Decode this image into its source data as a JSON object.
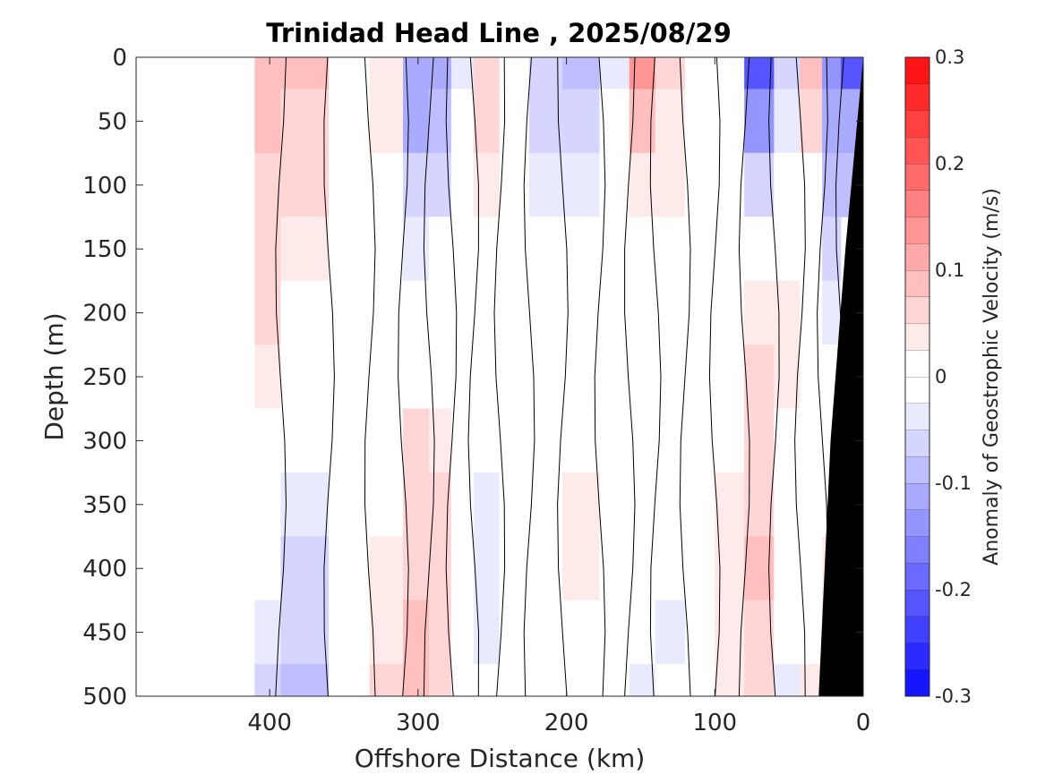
{
  "chart_data": {
    "type": "heatmap",
    "subtype": "filled-contour",
    "title": "Trinidad Head Line , 2025/08/29",
    "xlabel": "Offshore Distance (km)",
    "ylabel": "Depth (m)",
    "xlim": [
      490,
      0
    ],
    "ylim": [
      0,
      500
    ],
    "x_reversed": true,
    "y_reversed": true,
    "x_ticks": [
      400,
      300,
      200,
      100,
      0
    ],
    "x_tick_labels": [
      "400",
      "300",
      "200",
      "100",
      "0"
    ],
    "y_ticks": [
      0,
      50,
      100,
      150,
      200,
      250,
      300,
      350,
      400,
      450,
      500
    ],
    "y_tick_labels": [
      "0",
      "50",
      "100",
      "150",
      "200",
      "250",
      "300",
      "350",
      "400",
      "450",
      "500"
    ],
    "colorbar": {
      "label": "Anomaly of Geostrophic Velocity (m/s)",
      "range": [
        -0.3,
        0.3
      ],
      "levels": [
        -0.3,
        -0.275,
        -0.25,
        -0.225,
        -0.2,
        -0.175,
        -0.15,
        -0.125,
        -0.1,
        -0.075,
        -0.05,
        -0.025,
        0,
        0.025,
        0.05,
        0.075,
        0.1,
        0.125,
        0.15,
        0.175,
        0.2,
        0.225,
        0.25,
        0.275,
        0.3
      ],
      "ticks": [
        0.3,
        0.2,
        0.1,
        0,
        -0.1,
        -0.2,
        -0.3
      ],
      "tick_labels": [
        "0.3",
        "0.2",
        "0.1",
        "0",
        "-0.1",
        "-0.2",
        "-0.3"
      ]
    },
    "data_extent_km": [
      410,
      0
    ],
    "profile_distances_km": [
      410,
      375,
      345,
      320,
      300,
      285,
      270,
      255,
      235,
      215,
      190,
      165,
      150,
      130,
      110,
      90,
      70,
      50,
      35,
      20,
      10
    ],
    "section_velocity_m_s": [
      [
        0.09,
        0.08,
        0.07,
        0.06,
        0.05,
        0.04,
        0.02,
        0.01,
        -0.02,
        -0.04,
        -0.06
      ],
      [
        0.08,
        0.07,
        0.06,
        0.04,
        0.02,
        0.0,
        -0.02,
        -0.04,
        -0.05,
        -0.06,
        -0.08
      ],
      [
        -0.02,
        0.0,
        0.0,
        0.0,
        0.0,
        0.0,
        0.0,
        -0.01,
        -0.02,
        -0.02,
        -0.02
      ],
      [
        0.04,
        0.03,
        0.01,
        0.0,
        0.0,
        0.0,
        0.0,
        0.02,
        0.03,
        0.04,
        0.05
      ],
      [
        -0.12,
        -0.1,
        -0.07,
        -0.04,
        0.0,
        0.02,
        0.05,
        0.06,
        0.07,
        0.08,
        0.08
      ],
      [
        -0.12,
        -0.08,
        -0.05,
        -0.02,
        0.0,
        0.02,
        0.04,
        0.05,
        0.06,
        0.06,
        0.06
      ],
      [
        -0.03,
        -0.01,
        0.0,
        0.0,
        0.0,
        0.0,
        0.0,
        0.0,
        0.0,
        0.0,
        0.0
      ],
      [
        0.07,
        0.05,
        0.03,
        0.0,
        0.0,
        0.0,
        -0.02,
        -0.03,
        -0.03,
        -0.03,
        -0.02
      ],
      [
        0.0,
        -0.01,
        0.0,
        0.0,
        0.0,
        0.0,
        0.0,
        0.0,
        0.0,
        0.0,
        0.0
      ],
      [
        -0.06,
        -0.05,
        -0.03,
        -0.02,
        0.0,
        0.0,
        0.0,
        0.0,
        0.0,
        0.0,
        0.0
      ],
      [
        -0.08,
        -0.05,
        -0.03,
        0.0,
        0.0,
        0.0,
        0.02,
        0.03,
        0.03,
        0.02,
        0.02
      ],
      [
        -0.04,
        -0.02,
        0.0,
        0.0,
        0.0,
        0.0,
        0.0,
        0.0,
        0.0,
        0.0,
        0.0
      ],
      [
        0.14,
        0.08,
        0.04,
        0.02,
        0.0,
        0.0,
        0.0,
        0.0,
        -0.01,
        -0.02,
        -0.03
      ],
      [
        0.05,
        0.04,
        0.03,
        0.02,
        0.02,
        0.0,
        0.0,
        0.0,
        -0.02,
        -0.03,
        -0.02
      ],
      [
        0.0,
        0.0,
        0.01,
        0.02,
        0.02,
        0.0,
        0.0,
        0.0,
        0.0,
        0.0,
        0.0
      ],
      [
        -0.02,
        -0.02,
        0.0,
        0.0,
        0.0,
        0.02,
        0.02,
        0.03,
        0.04,
        0.04,
        0.04
      ],
      [
        -0.22,
        -0.14,
        -0.05,
        0.02,
        0.04,
        0.06,
        0.06,
        0.07,
        0.08,
        0.07,
        0.06
      ],
      [
        -0.05,
        -0.03,
        0.0,
        0.02,
        0.04,
        0.03,
        0.02,
        0.0,
        0.0,
        -0.02,
        -0.03
      ],
      [
        0.09,
        0.05,
        0.02,
        0.0,
        -0.02,
        -0.01,
        0.0,
        0.02,
        0.02,
        0.02,
        0.03
      ],
      [
        -0.15,
        -0.12,
        -0.08,
        -0.06,
        -0.04,
        -0.02,
        0.0,
        0.0,
        0.04,
        0.05,
        0.06
      ],
      [
        -0.2,
        -0.12,
        -0.08,
        null,
        null,
        null,
        null,
        null,
        null,
        null,
        null
      ]
    ],
    "section_depths_m": [
      0,
      50,
      100,
      150,
      200,
      250,
      300,
      350,
      400,
      450,
      500
    ],
    "bathymetry": "black seafloor wedge from 0 km at the surface to about 30 km at 500 m",
    "zero_contour": "black zero-velocity contour lines"
  }
}
